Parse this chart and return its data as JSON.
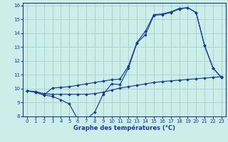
{
  "xlabel": "Graphe des températures (°C)",
  "bg_color": "#cceee8",
  "grid_color": "#aad4ce",
  "line_color": "#1a3a9e",
  "xlim": [
    -0.5,
    23.5
  ],
  "ylim": [
    8,
    16.2
  ],
  "xticks": [
    0,
    1,
    2,
    3,
    4,
    5,
    6,
    7,
    8,
    9,
    10,
    11,
    12,
    13,
    14,
    15,
    16,
    17,
    18,
    19,
    20,
    21,
    22,
    23
  ],
  "yticks": [
    8,
    9,
    10,
    11,
    12,
    13,
    14,
    15,
    16
  ],
  "line1_x": [
    0,
    1,
    2,
    3,
    4,
    5,
    6,
    7,
    8,
    9,
    10,
    11,
    12,
    13,
    14,
    15,
    16,
    17,
    18,
    19,
    20,
    21,
    22,
    23
  ],
  "line1_y": [
    9.85,
    9.8,
    9.65,
    9.6,
    9.6,
    9.6,
    9.6,
    9.6,
    9.65,
    9.75,
    9.9,
    10.05,
    10.15,
    10.25,
    10.35,
    10.45,
    10.52,
    10.57,
    10.62,
    10.67,
    10.72,
    10.77,
    10.82,
    10.87
  ],
  "line2_x": [
    0,
    1,
    2,
    3,
    4,
    5,
    6,
    7,
    8,
    9,
    10,
    11,
    12,
    13,
    14,
    15,
    16,
    17,
    18,
    19,
    20,
    21,
    22,
    23
  ],
  "line2_y": [
    9.85,
    9.75,
    9.55,
    9.45,
    9.2,
    8.9,
    7.8,
    7.8,
    8.3,
    9.6,
    10.35,
    10.3,
    11.5,
    13.3,
    13.9,
    15.3,
    15.35,
    15.5,
    15.75,
    15.85,
    15.5,
    13.1,
    11.5,
    10.8
  ],
  "line3_x": [
    0,
    1,
    2,
    3,
    4,
    5,
    6,
    7,
    8,
    9,
    10,
    11,
    12,
    13,
    14,
    15,
    16,
    17,
    18,
    19,
    20,
    21,
    22,
    23
  ],
  "line3_y": [
    9.85,
    9.75,
    9.55,
    10.05,
    10.1,
    10.15,
    10.25,
    10.35,
    10.45,
    10.55,
    10.65,
    10.7,
    11.65,
    13.35,
    14.15,
    15.35,
    15.4,
    15.55,
    15.8,
    15.85,
    15.5,
    13.1,
    11.5,
    10.8
  ]
}
